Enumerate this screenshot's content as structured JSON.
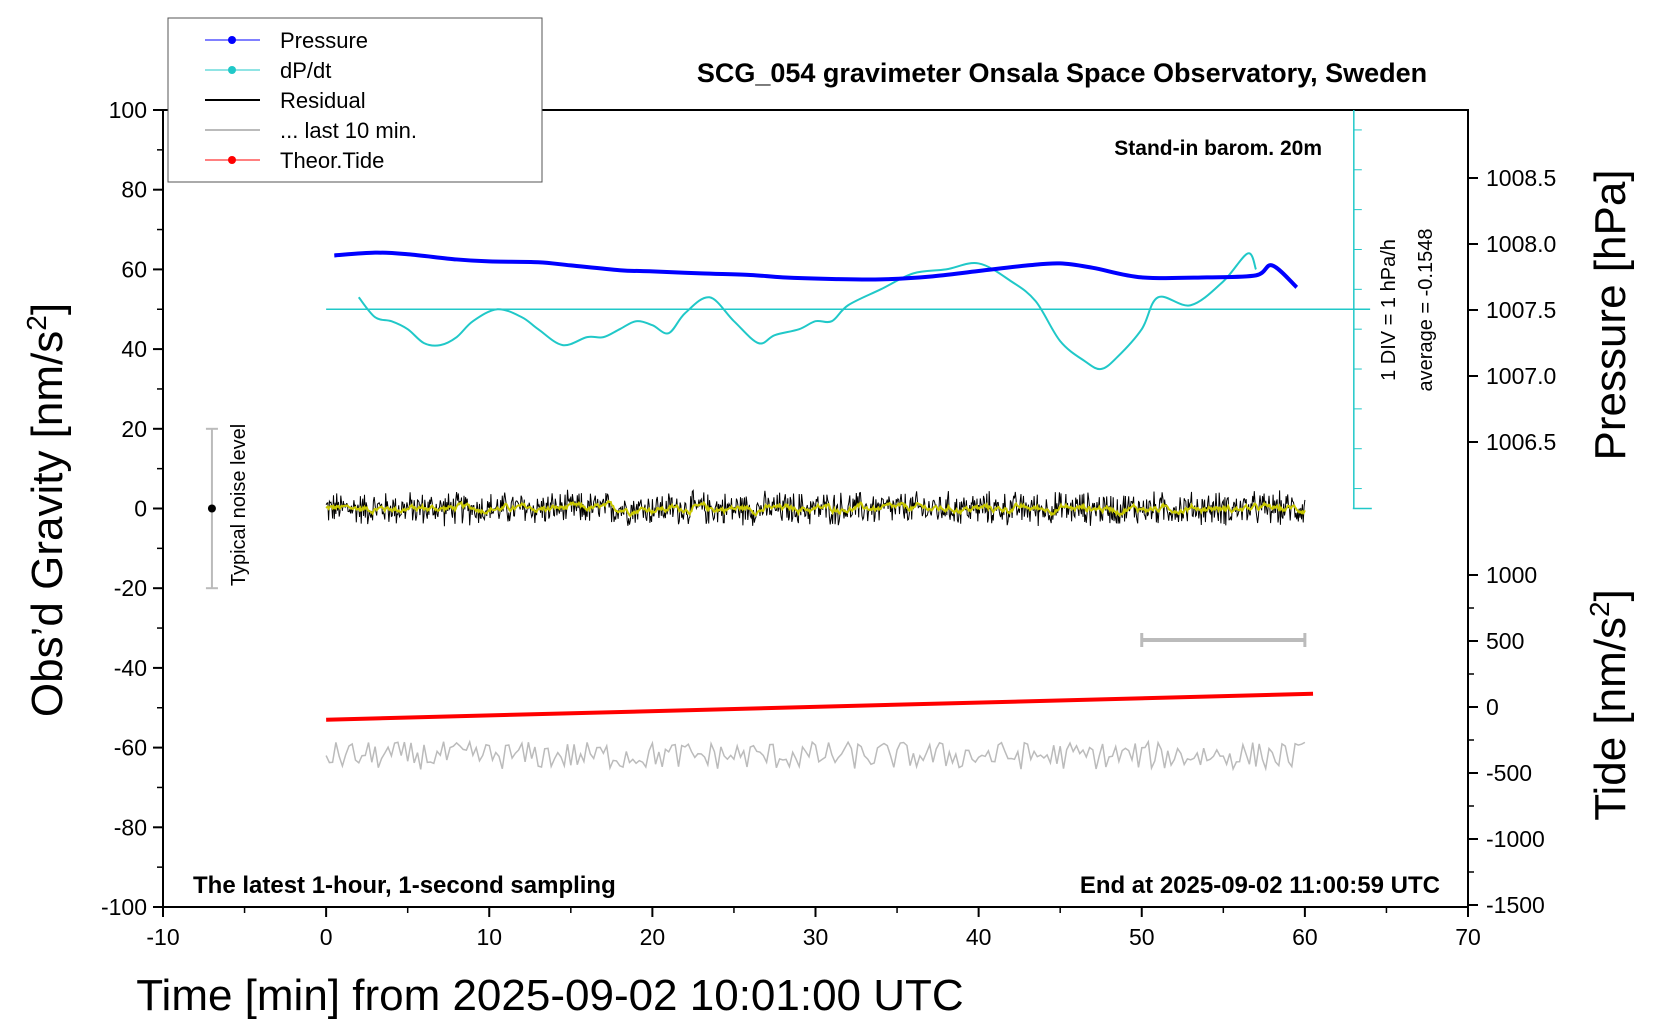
{
  "chart_data": {
    "type": "line",
    "title": "SCG_054 gravimeter Onsala Space Observatory, Sweden",
    "xlabel": "Time [min] from 2025-09-02 10:01:00 UTC",
    "ylabel_left_main": "Obs’d Gravity [nm/s",
    "ylabel_left_sup": "2",
    "ylabel_left_close": "]",
    "ylabel_right_pressure": "Pressure [hPa]",
    "ylabel_right_tide_main": "Tide [nm/s",
    "ylabel_right_tide_sup": "2",
    "ylabel_right_tide_close": "]",
    "xlim": [
      -10,
      70
    ],
    "ylim_left": [
      -100,
      100
    ],
    "xticks": [
      -10,
      0,
      10,
      20,
      30,
      40,
      50,
      60,
      70
    ],
    "yticks_left": [
      -100,
      -80,
      -60,
      -40,
      -20,
      0,
      20,
      40,
      60,
      80,
      100
    ],
    "pressure_ticks": [
      "1006.5",
      "1007.0",
      "1007.5",
      "1008.0",
      "1008.5"
    ],
    "tide_ticks": [
      "1000",
      "500",
      "0",
      "-500",
      "-1000",
      "-1500"
    ],
    "legend": {
      "placement": "top-left",
      "entries": [
        "Pressure",
        "dP/dt",
        "Residual",
        "... last 10 min.",
        "Theor.Tide"
      ]
    },
    "annotations": {
      "barom": "Stand-in barom. 20m",
      "div": "1 DIV = 1 hPa/h",
      "average": "average = -0.1548",
      "noise": "Typical noise level",
      "latest": "The latest 1-hour, 1-second sampling",
      "end": "End at 2025-09-02 11:00:59 UTC"
    },
    "pressure_gravity_units": {
      "x": [
        0.5,
        3,
        5,
        8,
        10,
        13,
        15,
        18,
        20,
        23,
        26,
        28,
        31,
        34,
        37,
        40,
        43,
        45,
        47,
        50,
        54,
        57,
        58,
        59.5
      ],
      "y": [
        63.5,
        64.2,
        63.8,
        62.5,
        62,
        61.8,
        61,
        59.8,
        59.5,
        59,
        58.6,
        58,
        57.6,
        57.5,
        58.2,
        59.6,
        61,
        61.5,
        60.4,
        58,
        58,
        58.5,
        61,
        55.5
      ]
    },
    "dpdt_gravity_units": {
      "x": [
        2,
        3,
        4,
        5,
        6,
        7,
        8,
        9,
        10.5,
        12,
        13,
        14.5,
        16,
        17,
        18,
        19,
        20,
        21,
        22,
        23.5,
        25,
        26.5,
        27.5,
        29,
        30,
        31,
        32,
        34,
        36,
        38,
        40,
        42,
        43.5,
        45,
        46.5,
        47.5,
        48.5,
        50,
        51,
        53,
        55,
        56.5,
        57
      ],
      "y": [
        53,
        48,
        47,
        45,
        41.5,
        41,
        43,
        47,
        50,
        48,
        45,
        41,
        43,
        43,
        45,
        47,
        46,
        44,
        49,
        53,
        47,
        41.5,
        43.5,
        45,
        47,
        47,
        51,
        55,
        59,
        60,
        61.5,
        57,
        52,
        42,
        37,
        35,
        38,
        45,
        53,
        51,
        57,
        64,
        60
      ]
    },
    "dpdt_average_line_y": 50,
    "noise_bar": {
      "x": -7,
      "y": [
        -20,
        20
      ]
    },
    "last10_bar": {
      "x": [
        50,
        60
      ],
      "y": -33
    },
    "theor_tide_gravity_units": {
      "x": [
        0,
        60.5
      ],
      "y": [
        -53,
        -46.5
      ]
    },
    "residual_mean": 0,
    "residual_amplitude": 3.5,
    "last10_residual_mean": -62,
    "last10_residual_amplitude": 3.5,
    "dpdt_ref_axis": {
      "x": 63,
      "y": [
        0,
        100
      ]
    }
  }
}
